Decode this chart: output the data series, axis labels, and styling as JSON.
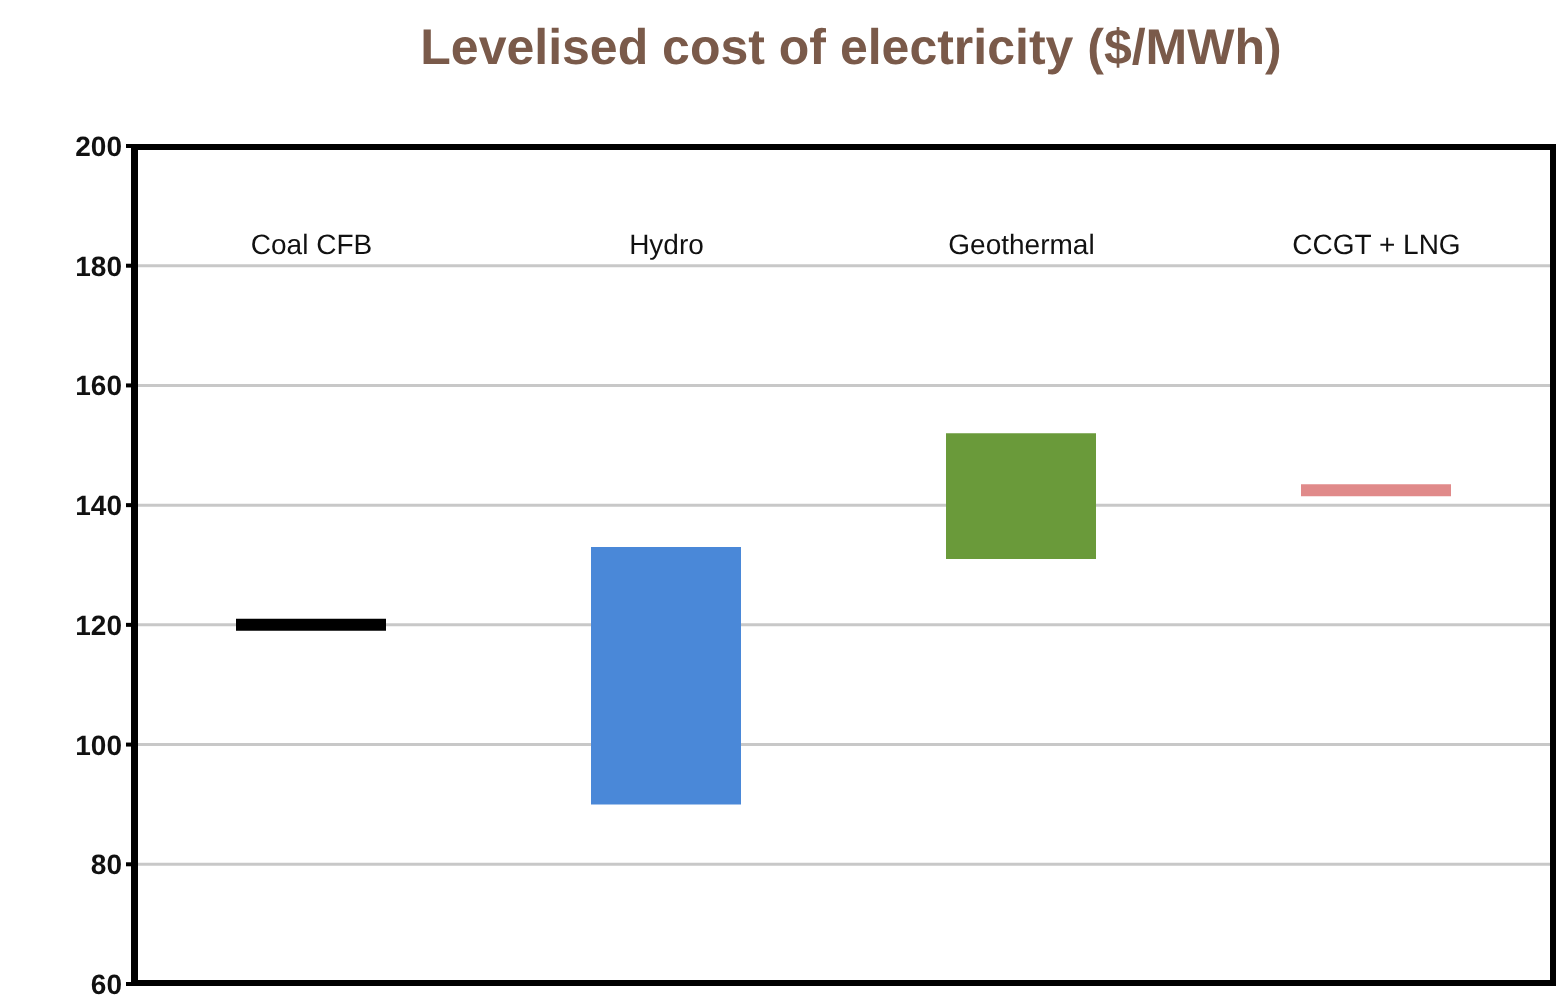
{
  "chart_data": {
    "type": "bar",
    "title": "Levelised cost of electricity ($/MWh)",
    "categories": [
      "Coal CFB",
      "Hydro",
      "Geothermal",
      "CCGT + LNG"
    ],
    "base": [
      119,
      90,
      131,
      141.5
    ],
    "values": [
      2,
      43,
      21,
      2
    ],
    "colors": [
      "#000000",
      "#4a88d8",
      "#6a9a3a",
      "#e08a8a"
    ],
    "ylim": [
      60,
      200
    ],
    "yticks": [
      60,
      80,
      100,
      120,
      140,
      160,
      180,
      200
    ],
    "grid": "y"
  }
}
